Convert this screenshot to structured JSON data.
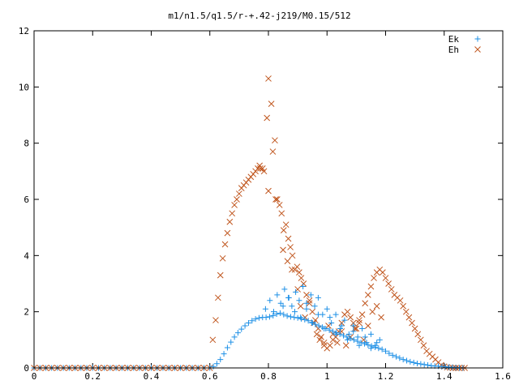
{
  "chart_data": {
    "type": "scatter",
    "title": "m1/n1.5/q1.5/r-+.42-j219/M0.15/512",
    "xlabel": "",
    "ylabel": "",
    "xlim": [
      0,
      1.6
    ],
    "ylim": [
      0,
      12
    ],
    "xticks": [
      "0",
      "0.2",
      "0.4",
      "0.6",
      "0.8",
      "1",
      "1.2",
      "1.4",
      "1.6"
    ],
    "yticks": [
      "0",
      "2",
      "4",
      "6",
      "8",
      "10",
      "12"
    ],
    "grid": false,
    "legend_position": "top-right",
    "series": [
      {
        "name": "Ek",
        "marker": "plus",
        "color": "#1e90e6",
        "x": [
          0.0,
          0.02,
          0.04,
          0.06,
          0.08,
          0.1,
          0.12,
          0.14,
          0.16,
          0.18,
          0.2,
          0.22,
          0.24,
          0.26,
          0.28,
          0.3,
          0.32,
          0.34,
          0.36,
          0.38,
          0.4,
          0.42,
          0.44,
          0.46,
          0.48,
          0.5,
          0.52,
          0.54,
          0.56,
          0.58,
          0.6,
          0.612,
          0.624,
          0.636,
          0.648,
          0.66,
          0.672,
          0.684,
          0.696,
          0.708,
          0.72,
          0.732,
          0.744,
          0.756,
          0.768,
          0.78,
          0.792,
          0.804,
          0.816,
          0.828,
          0.84,
          0.852,
          0.864,
          0.876,
          0.888,
          0.9,
          0.912,
          0.924,
          0.936,
          0.948,
          0.96,
          0.972,
          0.984,
          0.996,
          1.008,
          1.02,
          1.032,
          1.044,
          1.056,
          1.068,
          1.08,
          1.092,
          1.104,
          1.116,
          1.128,
          1.14,
          1.152,
          1.164,
          1.176,
          1.188,
          1.2,
          1.212,
          1.224,
          1.236,
          1.248,
          1.26,
          1.272,
          1.284,
          1.296,
          1.308,
          1.32,
          1.332,
          1.344,
          1.356,
          1.368,
          1.38,
          1.392,
          1.404,
          1.416,
          1.428,
          1.44,
          1.452,
          1.464,
          0.79,
          0.805,
          0.818,
          0.83,
          0.842,
          0.855,
          0.868,
          0.88,
          0.893,
          0.905,
          0.918,
          0.93,
          0.945,
          0.958,
          0.97,
          0.985,
          1.0,
          1.015,
          1.03,
          1.045,
          1.06,
          1.075,
          1.09,
          1.105,
          1.12,
          1.135,
          1.15,
          1.165,
          1.18,
          0.85,
          0.87,
          0.89,
          0.91,
          0.93,
          0.95,
          0.97,
          0.99,
          1.01,
          1.03,
          1.05,
          1.07,
          1.09,
          1.11,
          1.13,
          1.15,
          1.17
        ],
        "y": [
          0,
          0,
          0,
          0,
          0,
          0,
          0,
          0,
          0,
          0,
          0,
          0,
          0,
          0,
          0,
          0,
          0,
          0,
          0,
          0,
          0,
          0,
          0,
          0,
          0,
          0,
          0,
          0,
          0,
          0,
          0,
          0.05,
          0.15,
          0.3,
          0.5,
          0.72,
          0.92,
          1.1,
          1.25,
          1.38,
          1.5,
          1.6,
          1.68,
          1.74,
          1.78,
          1.8,
          1.8,
          1.82,
          1.86,
          1.92,
          1.95,
          1.9,
          1.85,
          1.82,
          1.8,
          1.78,
          1.75,
          1.72,
          1.68,
          1.62,
          1.55,
          1.5,
          1.45,
          1.4,
          1.35,
          1.3,
          1.25,
          1.2,
          1.15,
          1.1,
          1.05,
          1.0,
          0.95,
          0.9,
          0.86,
          0.82,
          0.78,
          0.74,
          0.7,
          0.66,
          0.6,
          0.52,
          0.45,
          0.4,
          0.35,
          0.3,
          0.26,
          0.22,
          0.19,
          0.16,
          0.14,
          0.12,
          0.1,
          0.08,
          0.07,
          0.06,
          0.05,
          0.04,
          0.03,
          0.02,
          0.01,
          0.005,
          0,
          2.1,
          2.4,
          2.0,
          2.6,
          2.3,
          2.8,
          2.5,
          2.2,
          2.7,
          2.4,
          2.9,
          2.1,
          2.6,
          2.2,
          2.5,
          1.9,
          2.1,
          1.6,
          1.9,
          1.4,
          1.7,
          1.2,
          1.5,
          1.1,
          1.4,
          0.9,
          1.2,
          0.8,
          1.0,
          2.2,
          2.5,
          2.0,
          1.8,
          2.3,
          1.6,
          1.9,
          1.4,
          1.8,
          1.2,
          1.5,
          1.0,
          1.3,
          0.8,
          1.1,
          0.7,
          0.9
        ]
      },
      {
        "name": "Eh",
        "marker": "cross",
        "color": "#c0561e",
        "x": [
          0.0,
          0.02,
          0.04,
          0.06,
          0.08,
          0.1,
          0.12,
          0.14,
          0.16,
          0.18,
          0.2,
          0.22,
          0.24,
          0.26,
          0.28,
          0.3,
          0.32,
          0.34,
          0.36,
          0.38,
          0.4,
          0.42,
          0.44,
          0.46,
          0.48,
          0.5,
          0.52,
          0.54,
          0.56,
          0.58,
          0.6,
          0.61,
          0.62,
          0.628,
          0.636,
          0.644,
          0.652,
          0.66,
          0.668,
          0.676,
          0.684,
          0.692,
          0.7,
          0.708,
          0.716,
          0.724,
          0.732,
          0.74,
          0.748,
          0.756,
          0.764,
          0.772,
          0.78,
          0.795,
          0.8,
          0.81,
          0.815,
          0.822,
          0.83,
          0.838,
          0.845,
          0.852,
          0.86,
          0.868,
          0.875,
          0.882,
          0.89,
          0.898,
          0.905,
          0.912,
          0.92,
          0.93,
          0.94,
          0.95,
          0.96,
          0.97,
          0.98,
          0.99,
          1.0,
          1.01,
          1.02,
          1.03,
          1.04,
          1.05,
          1.06,
          1.07,
          1.08,
          1.09,
          1.1,
          1.11,
          1.12,
          1.13,
          1.14,
          1.15,
          1.16,
          1.17,
          1.18,
          1.19,
          1.2,
          1.21,
          1.22,
          1.23,
          1.24,
          1.25,
          1.26,
          1.27,
          1.28,
          1.29,
          1.3,
          1.31,
          1.32,
          1.33,
          1.34,
          1.35,
          1.36,
          1.37,
          1.38,
          1.39,
          1.4,
          1.41,
          1.42,
          1.43,
          1.44,
          1.45,
          1.46,
          1.47,
          0.77,
          0.785,
          0.8,
          0.825,
          0.85,
          0.865,
          0.88,
          0.9,
          0.91,
          0.925,
          0.94,
          0.955,
          0.965,
          0.975,
          0.99,
          1.005,
          1.02,
          1.035,
          1.05,
          1.065,
          1.08,
          1.095,
          1.11,
          1.125,
          1.14,
          1.155,
          1.17,
          1.185
        ],
        "y": [
          0,
          0,
          0,
          0,
          0,
          0,
          0,
          0,
          0,
          0,
          0,
          0,
          0,
          0,
          0,
          0,
          0,
          0,
          0,
          0,
          0,
          0,
          0,
          0,
          0,
          0,
          0,
          0,
          0,
          0,
          0,
          1.0,
          1.7,
          2.5,
          3.3,
          3.9,
          4.4,
          4.8,
          5.2,
          5.5,
          5.8,
          6.0,
          6.2,
          6.4,
          6.5,
          6.6,
          6.7,
          6.8,
          6.9,
          7.0,
          7.1,
          7.1,
          7.1,
          8.9,
          10.3,
          9.4,
          7.7,
          8.1,
          6.0,
          5.8,
          5.5,
          4.9,
          5.1,
          4.6,
          4.3,
          4.0,
          3.5,
          3.6,
          3.4,
          3.2,
          3.0,
          2.6,
          2.3,
          2.0,
          1.7,
          1.4,
          1.1,
          0.8,
          0.7,
          0.8,
          1.0,
          1.1,
          1.3,
          1.6,
          1.9,
          2.0,
          1.8,
          1.6,
          1.4,
          1.6,
          1.9,
          2.3,
          2.6,
          2.9,
          3.2,
          3.4,
          3.5,
          3.4,
          3.2,
          3.0,
          2.8,
          2.6,
          2.5,
          2.4,
          2.2,
          2.0,
          1.8,
          1.6,
          1.4,
          1.2,
          1.0,
          0.8,
          0.6,
          0.5,
          0.4,
          0.3,
          0.2,
          0.1,
          0.05,
          0.02,
          0.01,
          0,
          0,
          0,
          0,
          0,
          7.2,
          7.0,
          6.3,
          6.0,
          4.2,
          3.8,
          3.5,
          2.8,
          2.2,
          1.8,
          2.4,
          1.6,
          1.2,
          1.0,
          0.9,
          1.5,
          1.2,
          0.9,
          1.3,
          0.8,
          1.1,
          1.4,
          1.7,
          1.0,
          1.5,
          2.0,
          2.2,
          1.8
        ]
      }
    ]
  }
}
